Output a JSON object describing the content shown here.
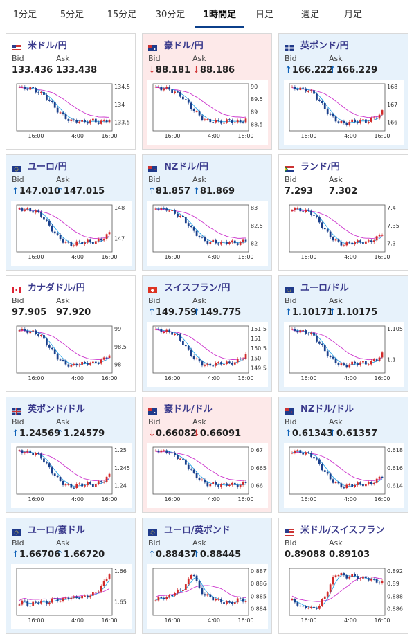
{
  "tabs": [
    "1分足",
    "5分足",
    "15分足",
    "30分足",
    "1時間足",
    "日足",
    "週足",
    "月足"
  ],
  "active_tab_index": 4,
  "labels": {
    "bid": "Bid",
    "ask": "Ask"
  },
  "colors": {
    "candle_up": "#d12b2b",
    "candle_down": "#1a3f8b",
    "ma_short": "#29a5e8",
    "ma_long": "#cc33cc",
    "arrow_up": "#0a5fb7",
    "arrow_down": "#d23a3a"
  },
  "cards": [
    {
      "pair": "米ドル/円",
      "flag": "us",
      "bg": "neutral",
      "arrow": "none",
      "bid": "133.436",
      "ask": "133.438",
      "x_ticks": [
        "16:00",
        "4:00",
        "16:00"
      ],
      "y_ticks": [
        "134.5",
        "134",
        "133.5"
      ]
    },
    {
      "pair": "豪ドル/円",
      "flag": "au",
      "bg": "down",
      "arrow": "down",
      "bid": "88.181",
      "ask": "88.186",
      "x_ticks": [
        "16:00",
        "4:00",
        "16:00"
      ],
      "y_ticks": [
        "90",
        "89.5",
        "89",
        "88.5"
      ]
    },
    {
      "pair": "英ポンド/円",
      "flag": "gb",
      "bg": "up",
      "arrow": "up",
      "bid": "166.222",
      "ask": "166.229",
      "x_ticks": [
        "16:00",
        "4:00",
        "16:00"
      ],
      "y_ticks": [
        "168",
        "167",
        "166"
      ]
    },
    {
      "pair": "ユーロ/円",
      "flag": "eu",
      "bg": "up",
      "arrow": "up",
      "bid": "147.010",
      "ask": "147.015",
      "x_ticks": [
        "16:00",
        "4:00",
        "16:00"
      ],
      "y_ticks": [
        "148",
        "147"
      ]
    },
    {
      "pair": "NZドル/円",
      "flag": "nz",
      "bg": "up",
      "arrow": "up",
      "bid": "81.857",
      "ask": "81.869",
      "x_ticks": [
        "16:00",
        "4:00",
        "16:00"
      ],
      "y_ticks": [
        "83",
        "82.5",
        "82"
      ]
    },
    {
      "pair": "ランド/円",
      "flag": "za",
      "bg": "neutral",
      "arrow": "none",
      "bid": "7.293",
      "ask": "7.302",
      "x_ticks": [
        "16:00",
        "4:00",
        "16:00"
      ],
      "y_ticks": [
        "7.4",
        "7.35",
        "7.3"
      ]
    },
    {
      "pair": "カナダドル/円",
      "flag": "ca",
      "bg": "neutral",
      "arrow": "none",
      "bid": "97.905",
      "ask": "97.920",
      "x_ticks": [
        "16:00",
        "4:00",
        "16:00"
      ],
      "y_ticks": [
        "99",
        "98.5",
        "98"
      ]
    },
    {
      "pair": "スイスフラン/円",
      "flag": "ch",
      "bg": "up",
      "arrow": "up",
      "bid": "149.759",
      "ask": "149.775",
      "x_ticks": [
        "16:00",
        "4:00",
        "16:00"
      ],
      "y_ticks": [
        "151.5",
        "151",
        "150.5",
        "150",
        "149.5"
      ]
    },
    {
      "pair": "ユーロ/ドル",
      "flag": "eu",
      "bg": "up",
      "arrow": "up",
      "bid": "1.10171",
      "ask": "1.10175",
      "x_ticks": [
        "16:00",
        "4:00",
        "16:00"
      ],
      "y_ticks": [
        "1.105",
        "1.1"
      ]
    },
    {
      "pair": "英ポンド/ドル",
      "flag": "gb",
      "bg": "up",
      "arrow": "up",
      "bid": "1.24569",
      "ask": "1.24579",
      "x_ticks": [
        "16:00",
        "4:00",
        "16:00"
      ],
      "y_ticks": [
        "1.25",
        "1.245",
        "1.24"
      ]
    },
    {
      "pair": "豪ドル/ドル",
      "flag": "au",
      "bg": "down",
      "arrow": "down",
      "bid": "0.66082",
      "ask": "0.66091",
      "x_ticks": [
        "16:00",
        "4:00",
        "16:00"
      ],
      "y_ticks": [
        "0.67",
        "0.665",
        "0.66"
      ]
    },
    {
      "pair": "NZドル/ドル",
      "flag": "nz",
      "bg": "up",
      "arrow": "up",
      "bid": "0.61343",
      "ask": "0.61357",
      "x_ticks": [
        "16:00",
        "4:00",
        "16:00"
      ],
      "y_ticks": [
        "0.618",
        "0.616",
        "0.614"
      ]
    },
    {
      "pair": "ユーロ/豪ドル",
      "flag": "eu",
      "bg": "up",
      "arrow": "up",
      "bid": "1.66706",
      "ask": "1.66720",
      "x_ticks": [
        "16:00",
        "4:00",
        "16:00"
      ],
      "y_ticks": [
        "1.66",
        "1.65"
      ]
    },
    {
      "pair": "ユーロ/英ポンド",
      "flag": "eu",
      "bg": "up",
      "arrow": "up",
      "bid": "0.88437",
      "ask": "0.88445",
      "x_ticks": [
        "16:00",
        "4:00",
        "16:00"
      ],
      "y_ticks": [
        "0.887",
        "0.886",
        "0.885",
        "0.884"
      ]
    },
    {
      "pair": "米ドル/スイスフラン",
      "flag": "us",
      "bg": "neutral",
      "arrow": "none",
      "bid": "0.89088",
      "ask": "0.89103",
      "x_ticks": [
        "16:00",
        "4:00",
        "16:00"
      ],
      "y_ticks": [
        "0.892",
        "0.89",
        "0.888",
        "0.886"
      ]
    }
  ]
}
